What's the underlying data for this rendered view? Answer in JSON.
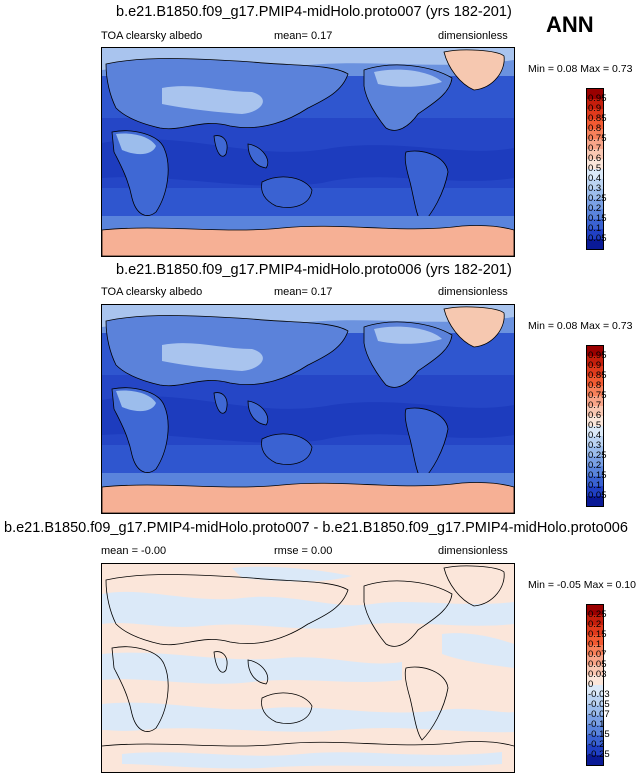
{
  "season": "ANN",
  "panels": [
    {
      "title": "b.e21.B1850.f09_g17.PMIP4-midHolo.proto007 (yrs 182-201)",
      "variable": "TOA clearsky albedo",
      "stat": "mean=  0.17",
      "units": "dimensionless",
      "minmax": "Min =  0.08 Max =  0.73",
      "colorbar": {
        "levels": [
          "0.95",
          "0.9",
          "0.85",
          "0.8",
          "0.75",
          "0.7",
          "0.6",
          "0.5",
          "0.4",
          "0.3",
          "0.25",
          "0.2",
          "0.15",
          "0.1",
          "0.05"
        ],
        "colors": [
          "#9a0000",
          "#c41e0c",
          "#e03a1c",
          "#f25a32",
          "#f7805a",
          "#f8a488",
          "#f9c7b2",
          "#fbe6da",
          "#dbe9f8",
          "#bcd4f2",
          "#9cbdec",
          "#7aa0e4",
          "#5a84dc",
          "#3a62d2",
          "#2040c4",
          "#0a1a96"
        ]
      }
    },
    {
      "title": "b.e21.B1850.f09_g17.PMIP4-midHolo.proto006 (yrs 182-201)",
      "variable": "TOA clearsky albedo",
      "stat": "mean=  0.17",
      "units": "dimensionless",
      "minmax": "Min =  0.08 Max =  0.73",
      "colorbar": {
        "levels": [
          "0.95",
          "0.9",
          "0.85",
          "0.8",
          "0.75",
          "0.7",
          "0.6",
          "0.5",
          "0.4",
          "0.3",
          "0.25",
          "0.2",
          "0.15",
          "0.1",
          "0.05"
        ],
        "colors": [
          "#9a0000",
          "#c41e0c",
          "#e03a1c",
          "#f25a32",
          "#f7805a",
          "#f8a488",
          "#f9c7b2",
          "#fbe6da",
          "#dbe9f8",
          "#bcd4f2",
          "#9cbdec",
          "#7aa0e4",
          "#5a84dc",
          "#3a62d2",
          "#2040c4",
          "#0a1a96"
        ]
      }
    },
    {
      "title": "b.e21.B1850.f09_g17.PMIP4-midHolo.proto007 - b.e21.B1850.f09_g17.PMIP4-midHolo.proto006",
      "variable": "mean =  -0.00",
      "stat": "rmse =  0.00",
      "units": "dimensionless",
      "minmax": "Min =  -0.05 Max =  0.10",
      "colorbar": {
        "levels": [
          "0.25",
          "0.2",
          "0.15",
          "0.1",
          "0.07",
          "0.05",
          "0.03",
          "0",
          "-0.03",
          "-0.05",
          "-0.07",
          "-0.1",
          "-0.15",
          "-0.2",
          "-0.25"
        ],
        "colors": [
          "#9a0000",
          "#c41e0c",
          "#e03a1c",
          "#f25a32",
          "#f7805a",
          "#f8a488",
          "#f9c7b2",
          "#fbe6da",
          "#dbe9f8",
          "#bcd4f2",
          "#9cbdec",
          "#7aa0e4",
          "#5a84dc",
          "#3a62d2",
          "#2040c4",
          "#0a1a96"
        ]
      }
    }
  ],
  "chart_data": [
    {
      "type": "heatmap",
      "title": "b.e21.B1850.f09_g17.PMIP4-midHolo.proto007 (yrs 182-201)",
      "variable": "TOA clearsky albedo",
      "units": "dimensionless",
      "mean": 0.17,
      "min": 0.08,
      "max": 0.73,
      "contour_levels": [
        0.05,
        0.1,
        0.15,
        0.2,
        0.25,
        0.3,
        0.4,
        0.5,
        0.6,
        0.7,
        0.75,
        0.8,
        0.85,
        0.9,
        0.95
      ]
    },
    {
      "type": "heatmap",
      "title": "b.e21.B1850.f09_g17.PMIP4-midHolo.proto006 (yrs 182-201)",
      "variable": "TOA clearsky albedo",
      "units": "dimensionless",
      "mean": 0.17,
      "min": 0.08,
      "max": 0.73,
      "contour_levels": [
        0.05,
        0.1,
        0.15,
        0.2,
        0.25,
        0.3,
        0.4,
        0.5,
        0.6,
        0.7,
        0.75,
        0.8,
        0.85,
        0.9,
        0.95
      ]
    },
    {
      "type": "heatmap",
      "title": "b.e21.B1850.f09_g17.PMIP4-midHolo.proto007 - b.e21.B1850.f09_g17.PMIP4-midHolo.proto006",
      "units": "dimensionless",
      "mean": -0.0,
      "rmse": 0.0,
      "min": -0.05,
      "max": 0.1,
      "contour_levels": [
        -0.25,
        -0.2,
        -0.15,
        -0.1,
        -0.07,
        -0.05,
        -0.03,
        0,
        0.03,
        0.05,
        0.07,
        0.1,
        0.15,
        0.2,
        0.25
      ]
    }
  ]
}
